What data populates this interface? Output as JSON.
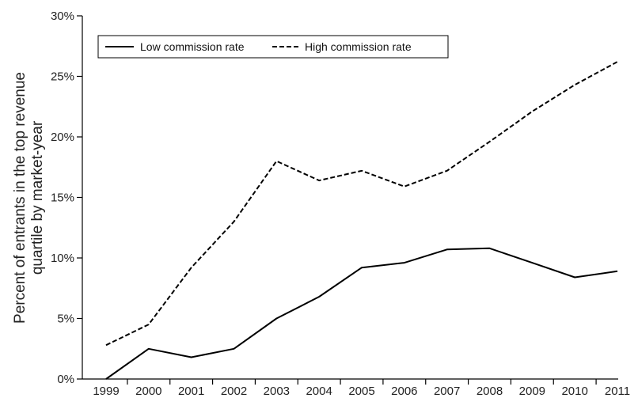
{
  "chart_data": {
    "type": "line",
    "title": "",
    "xlabel": "",
    "ylabel": [
      "Percent of entrants in the top revenue",
      "quartile by market-year"
    ],
    "x": [
      "1999",
      "2000",
      "2001",
      "2002",
      "2003",
      "2004",
      "2005",
      "2006",
      "2007",
      "2008",
      "2009",
      "2010",
      "2011"
    ],
    "y_ticks": [
      "0%",
      "5%",
      "10%",
      "15%",
      "20%",
      "25%",
      "30%"
    ],
    "ylim": [
      0,
      30
    ],
    "grid": false,
    "legend_position": "top-left",
    "series": [
      {
        "name": "Low commission rate",
        "style": "solid",
        "color": "#000000",
        "values": [
          0,
          2.5,
          1.8,
          2.5,
          5.0,
          6.8,
          9.2,
          9.6,
          10.7,
          10.8,
          9.6,
          8.4,
          8.9
        ]
      },
      {
        "name": "High commission rate",
        "style": "dashed",
        "color": "#000000",
        "values": [
          2.8,
          4.5,
          9.2,
          13.0,
          18.0,
          16.4,
          17.2,
          15.9,
          17.2,
          19.6,
          22.1,
          24.3,
          26.2
        ]
      }
    ]
  }
}
